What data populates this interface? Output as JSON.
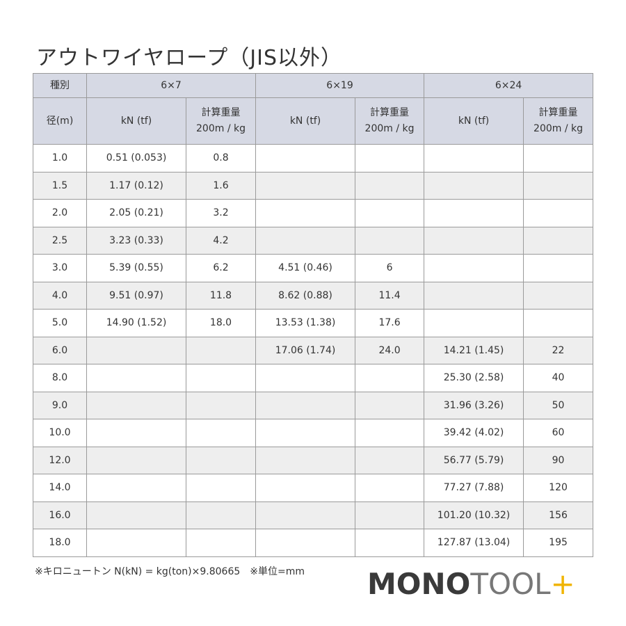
{
  "title": "アウトワイヤロープ（JIS以外）",
  "header": {
    "type_label": "種別",
    "diameter_label": "径(m)",
    "groups": [
      "6×7",
      "6×19",
      "6×24"
    ],
    "kn_label": "kN (tf)",
    "weight_label_1": "計算重量",
    "weight_label_2": "200m / kg"
  },
  "rows": [
    [
      "1.0",
      "0.51 (0.053)",
      "0.8",
      "",
      "",
      "",
      ""
    ],
    [
      "1.5",
      "1.17 (0.12)",
      "1.6",
      "",
      "",
      "",
      ""
    ],
    [
      "2.0",
      "2.05 (0.21)",
      "3.2",
      "",
      "",
      "",
      ""
    ],
    [
      "2.5",
      "3.23 (0.33)",
      "4.2",
      "",
      "",
      "",
      ""
    ],
    [
      "3.0",
      "5.39 (0.55)",
      "6.2",
      "4.51 (0.46)",
      "6",
      "",
      ""
    ],
    [
      "4.0",
      "9.51 (0.97)",
      "11.8",
      "8.62 (0.88)",
      "11.4",
      "",
      ""
    ],
    [
      "5.0",
      "14.90 (1.52)",
      "18.0",
      "13.53 (1.38)",
      "17.6",
      "",
      ""
    ],
    [
      "6.0",
      "",
      "",
      "17.06 (1.74)",
      "24.0",
      "14.21 (1.45)",
      "22"
    ],
    [
      "8.0",
      "",
      "",
      "",
      "",
      "25.30 (2.58)",
      "40"
    ],
    [
      "9.0",
      "",
      "",
      "",
      "",
      "31.96 (3.26)",
      "50"
    ],
    [
      "10.0",
      "",
      "",
      "",
      "",
      "39.42 (4.02)",
      "60"
    ],
    [
      "12.0",
      "",
      "",
      "",
      "",
      "56.77 (5.79)",
      "90"
    ],
    [
      "14.0",
      "",
      "",
      "",
      "",
      "77.27 (7.88)",
      "120"
    ],
    [
      "16.0",
      "",
      "",
      "",
      "",
      "101.20 (10.32)",
      "156"
    ],
    [
      "18.0",
      "",
      "",
      "",
      "",
      "127.87 (13.04)",
      "195"
    ]
  ],
  "footnote": "※キロニュートン N(kN) = kg(ton)×9.80665　※単位=mm",
  "logo": {
    "part1": "MONO",
    "part2": "TOOL",
    "part3": "+"
  }
}
